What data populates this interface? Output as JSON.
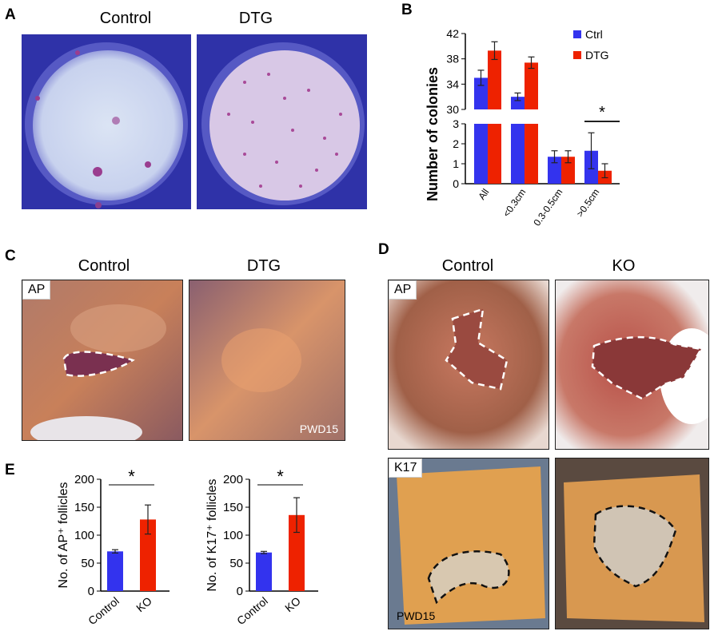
{
  "panel_letters": {
    "a": "A",
    "b": "B",
    "c": "C",
    "d": "D",
    "e": "E"
  },
  "panel_a": {
    "titles": [
      "Control",
      "DTG"
    ]
  },
  "panel_c": {
    "titles": [
      "Control",
      "DTG"
    ],
    "tag": "AP",
    "stamp": "PWD15"
  },
  "panel_d": {
    "titles": [
      "Control",
      "KO"
    ],
    "tag_top": "AP",
    "tag_bottom": "K17",
    "stamp": "PWD15"
  },
  "colors": {
    "ctrl": "#3333ee",
    "dtg": "#ee2200",
    "ko": "#ee2200"
  },
  "chart_data": [
    {
      "id": "B",
      "type": "bar",
      "ylabel": "Number of colonies",
      "categories": [
        "All",
        "<0.3cm",
        "0.3-0.5cm",
        ">0.5cm"
      ],
      "axis_break": {
        "lower_ylim": [
          0,
          3
        ],
        "lower_ticks": [
          "0",
          "1",
          "2",
          "3"
        ],
        "upper_ylim": [
          30,
          42
        ],
        "upper_ticks": [
          "30",
          "34",
          "38",
          "42"
        ]
      },
      "series": [
        {
          "name": "Ctrl",
          "values": [
            35.0,
            32.0,
            1.35,
            1.65
          ],
          "errors": [
            1.2,
            0.6,
            0.3,
            0.9
          ]
        },
        {
          "name": "DTG",
          "values": [
            39.3,
            37.4,
            1.35,
            0.65
          ],
          "errors": [
            1.4,
            0.9,
            0.3,
            0.35
          ]
        }
      ],
      "significance": {
        "category": ">0.5cm",
        "symbol": "*"
      }
    },
    {
      "id": "E1",
      "type": "bar",
      "ylabel": "No. of AP⁺ follicles",
      "categories": [
        "Control",
        "KO"
      ],
      "values": [
        71,
        128
      ],
      "errors": [
        3,
        26
      ],
      "ylim": [
        0,
        200
      ],
      "yticks": [
        "0",
        "50",
        "100",
        "150",
        "200"
      ],
      "significance": "*"
    },
    {
      "id": "E2",
      "type": "bar",
      "ylabel": "No. of K17⁺ follicles",
      "categories": [
        "Control",
        "KO"
      ],
      "values": [
        69,
        136
      ],
      "errors": [
        2,
        31
      ],
      "ylim": [
        0,
        200
      ],
      "yticks": [
        "0",
        "50",
        "100",
        "150",
        "200"
      ],
      "significance": "*"
    }
  ]
}
